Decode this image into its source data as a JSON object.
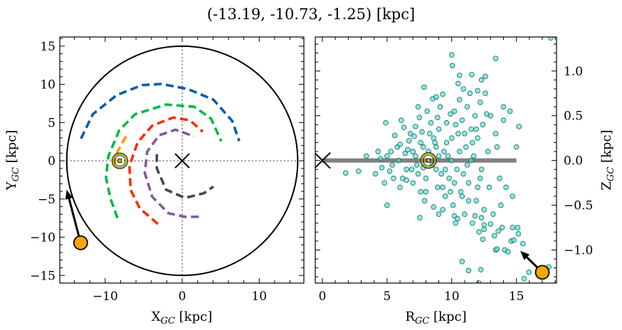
{
  "title": "(-13.19, -10.73, -1.25) [kpc]",
  "colors": {
    "cyan_points": "#40e0d0",
    "target": "#ffa500",
    "sun_ring": "#b5b800",
    "arc_blue": "#0c5da5",
    "arc_green": "#00b945",
    "arc_red": "#ff2c00",
    "arc_purple": "#845b97",
    "arc_gray": "#474747",
    "arc_orange": "#ff9500",
    "plane_line": "#808080"
  },
  "chart_data": [
    {
      "type": "line",
      "panel": "left",
      "xlabel": [
        "X",
        "GC",
        " [kpc]"
      ],
      "ylabel": [
        "Y",
        "GC",
        " [kpc]"
      ],
      "xlim": [
        -15.9,
        15.8
      ],
      "ylim": [
        -16,
        16.2
      ],
      "xticks": [
        -10,
        0,
        10
      ],
      "xtick_labels": [
        "−10",
        "0",
        "10"
      ],
      "yticks": [
        -15,
        -10,
        -5,
        0,
        5,
        10,
        15
      ],
      "ytick_labels": [
        "−15",
        "−10",
        "−5",
        "0",
        "5",
        "10",
        "15"
      ],
      "boundary_circle_radius": 15,
      "galactic_center": [
        0,
        0
      ],
      "sun": [
        -8.1,
        0
      ],
      "target": [
        -13.19,
        -10.73
      ],
      "target_arrow_to": [
        -15.0,
        -3.8
      ],
      "spiral_arms": [
        {
          "color": "arc_blue",
          "points": [
            [
              -13.15,
              2.9
            ],
            [
              -11.6,
              6.1
            ],
            [
              -8.5,
              8.6
            ],
            [
              -5.2,
              9.9
            ],
            [
              -2.7,
              10.05
            ],
            [
              0.7,
              9.4
            ],
            [
              4.05,
              8.0
            ],
            [
              6.5,
              5.2
            ],
            [
              7.4,
              2.57
            ]
          ]
        },
        {
          "color": "arc_green",
          "points": [
            [
              -8.4,
              -7.5
            ],
            [
              -9.3,
              -5.0
            ],
            [
              -9.9,
              -2.2
            ],
            [
              -9.6,
              0.55
            ],
            [
              -8.2,
              3.96
            ],
            [
              -6.1,
              6.1
            ],
            [
              -2.1,
              7.36
            ],
            [
              1.6,
              7.06
            ],
            [
              3.75,
              5.5
            ],
            [
              5.07,
              2.57
            ]
          ]
        },
        {
          "color": "arc_red",
          "points": [
            [
              -3.16,
              -8.26
            ],
            [
              -5.5,
              -6.25
            ],
            [
              -6.7,
              -3.8
            ],
            [
              -6.85,
              -0.68
            ],
            [
              -5.8,
              2.4
            ],
            [
              -3.9,
              4.6
            ],
            [
              -1.17,
              5.66
            ],
            [
              1.0,
              5.3
            ],
            [
              2.67,
              3.8
            ]
          ]
        },
        {
          "color": "arc_purple",
          "points": [
            [
              2.15,
              -7.33
            ],
            [
              0.37,
              -7.33
            ],
            [
              -1.78,
              -6.87
            ],
            [
              -3.9,
              -4.7
            ],
            [
              -4.86,
              -1.6
            ],
            [
              -4.55,
              1.2
            ],
            [
              -3.0,
              3.34
            ],
            [
              -0.86,
              4.06
            ],
            [
              1.54,
              3.2
            ]
          ]
        },
        {
          "color": "arc_gray",
          "points": [
            [
              -3.3,
              0.87
            ],
            [
              -3.3,
              -0.99
            ],
            [
              -2.1,
              -3.78
            ],
            [
              0.37,
              -4.86
            ],
            [
              2.83,
              -4.24
            ],
            [
              4.05,
              -3.37
            ]
          ]
        },
        {
          "color": "arc_orange",
          "points": [
            [
              -7.3,
              3.2
            ],
            [
              -8.4,
              1.2
            ],
            [
              -9.0,
              -1.0
            ]
          ]
        }
      ]
    },
    {
      "type": "scatter",
      "panel": "right",
      "xlabel": [
        "R",
        "GC",
        " [kpc]"
      ],
      "ylabel": [
        "Z",
        "GC",
        " [kpc]"
      ],
      "xlim": [
        -0.55,
        18.1
      ],
      "ylim": [
        -1.37,
        1.38
      ],
      "xticks": [
        0,
        5,
        10,
        15
      ],
      "xtick_labels": [
        "0",
        "5",
        "10",
        "15"
      ],
      "yticks": [
        -1.0,
        -0.5,
        0.0,
        0.5,
        1.0
      ],
      "ytick_labels": [
        "−1.0",
        "−0.5",
        "0.0",
        "0.5",
        "1.0"
      ],
      "plane_line": {
        "r": [
          0,
          15
        ],
        "z": 0
      },
      "galactic_center": [
        0,
        0
      ],
      "sun": [
        8.2,
        0
      ],
      "target": [
        17.0,
        -1.25
      ],
      "target_arrow_to": [
        15.3,
        -1.01
      ],
      "points": [
        [
          17.65,
          1.37
        ],
        [
          10.0,
          1.18
        ],
        [
          10.05,
          1.06
        ],
        [
          13.4,
          1.14
        ],
        [
          11.55,
          0.96
        ],
        [
          12.3,
          0.9
        ],
        [
          7.86,
          0.82
        ],
        [
          8.53,
          0.69
        ],
        [
          10.5,
          0.86
        ],
        [
          10.6,
          0.95
        ],
        [
          12.6,
          0.94
        ],
        [
          12.0,
          0.78
        ],
        [
          9.3,
          0.74
        ],
        [
          8.8,
          0.71
        ],
        [
          7.53,
          -0.64
        ],
        [
          10.2,
          -0.62
        ],
        [
          10.45,
          -0.65
        ],
        [
          13.0,
          -0.71
        ],
        [
          12.5,
          -0.77
        ],
        [
          13.9,
          -0.75
        ],
        [
          14.7,
          -0.75
        ],
        [
          15.1,
          -0.75
        ],
        [
          15.15,
          -0.82
        ],
        [
          15.5,
          -0.93
        ],
        [
          14.6,
          -0.9
        ],
        [
          14.8,
          -0.89
        ],
        [
          12.4,
          -0.88
        ],
        [
          13.3,
          -0.84
        ],
        [
          13.6,
          -0.79
        ],
        [
          13.4,
          -1.0
        ],
        [
          13.5,
          -0.99
        ],
        [
          14.1,
          -1.0
        ],
        [
          14.35,
          -1.02
        ],
        [
          10.8,
          -1.13
        ],
        [
          11.3,
          -1.23
        ],
        [
          12.25,
          -1.22
        ],
        [
          12.1,
          -1.37
        ],
        [
          15.6,
          -1.32
        ],
        [
          15.97,
          -1.25
        ],
        [
          17.5,
          -1.19
        ],
        [
          1.8,
          -0.14
        ],
        [
          2.8,
          -0.12
        ],
        [
          4.1,
          -0.15
        ],
        [
          3.4,
          0.05
        ],
        [
          5.0,
          -0.5
        ],
        [
          4.9,
          0.42
        ],
        [
          6.1,
          0.45
        ],
        [
          7.1,
          0.27
        ],
        [
          7.5,
          0.48
        ],
        [
          6.3,
          0.37
        ],
        [
          5.3,
          0.1
        ],
        [
          4.5,
          0.02
        ],
        [
          4.6,
          -0.08
        ],
        [
          5.5,
          -0.2
        ],
        [
          5.8,
          0.15
        ],
        [
          6.0,
          -0.3
        ],
        [
          6.5,
          -0.1
        ],
        [
          6.7,
          0.22
        ],
        [
          7.0,
          -0.25
        ],
        [
          7.2,
          0.05
        ],
        [
          7.6,
          -0.35
        ],
        [
          7.8,
          0.15
        ],
        [
          8.0,
          -0.2
        ],
        [
          8.3,
          0.3
        ],
        [
          8.5,
          -0.05
        ],
        [
          8.7,
          0.2
        ],
        [
          8.9,
          -0.3
        ],
        [
          9.0,
          0.35
        ],
        [
          9.2,
          -0.15
        ],
        [
          9.4,
          0.1
        ],
        [
          9.5,
          -0.4
        ],
        [
          9.6,
          0.42
        ],
        [
          9.8,
          -0.2
        ],
        [
          10.0,
          0.25
        ],
        [
          10.1,
          -0.5
        ],
        [
          10.2,
          0.55
        ],
        [
          10.4,
          -0.1
        ],
        [
          10.5,
          0.3
        ],
        [
          10.7,
          -0.35
        ],
        [
          10.8,
          0.45
        ],
        [
          11.0,
          -0.6
        ],
        [
          11.1,
          0.15
        ],
        [
          11.2,
          0.6
        ],
        [
          11.3,
          -0.25
        ],
        [
          11.5,
          0.35
        ],
        [
          11.6,
          -0.7
        ],
        [
          11.7,
          0.05
        ],
        [
          11.8,
          0.5
        ],
        [
          11.9,
          -0.45
        ],
        [
          12.0,
          0.25
        ],
        [
          12.1,
          -0.8
        ],
        [
          12.2,
          0.65
        ],
        [
          12.3,
          -0.1
        ],
        [
          12.4,
          0.4
        ],
        [
          12.5,
          -0.55
        ],
        [
          12.6,
          0.75
        ],
        [
          12.8,
          0.1
        ],
        [
          12.9,
          -0.3
        ],
        [
          13.0,
          0.5
        ],
        [
          13.2,
          -0.6
        ],
        [
          13.4,
          0.3
        ],
        [
          13.5,
          0.15
        ],
        [
          13.7,
          -0.2
        ],
        [
          14.0,
          0.45
        ],
        [
          14.2,
          -0.3
        ],
        [
          14.5,
          0.55
        ],
        [
          14.7,
          -0.4
        ],
        [
          15.2,
          0.38
        ],
        [
          15.0,
          0.15
        ],
        [
          13.8,
          -0.5
        ],
        [
          14.0,
          0.6
        ],
        [
          12.7,
          0.52
        ],
        [
          11.4,
          0.75
        ],
        [
          10.9,
          0.8
        ],
        [
          9.9,
          0.52
        ],
        [
          9.1,
          0.6
        ],
        [
          8.1,
          0.55
        ],
        [
          7.4,
          0.6
        ],
        [
          6.9,
          -0.1
        ],
        [
          7.9,
          -0.45
        ],
        [
          8.6,
          -0.52
        ],
        [
          9.3,
          -0.55
        ],
        [
          10.3,
          -0.7
        ],
        [
          10.6,
          0.68
        ],
        [
          11.8,
          -0.62
        ],
        [
          12.3,
          -0.64
        ],
        [
          12.5,
          -0.72
        ],
        [
          6.4,
          0.08
        ],
        [
          5.6,
          0.28
        ],
        [
          5.2,
          -0.12
        ],
        [
          4.8,
          -0.25
        ],
        [
          8.2,
          0.1
        ],
        [
          8.8,
          -0.1
        ],
        [
          9.7,
          0.05
        ],
        [
          7.3,
          -0.05
        ],
        [
          9.0,
          -0.6
        ],
        [
          10.0,
          0.0
        ],
        [
          10.9,
          -0.15
        ],
        [
          11.5,
          0.0
        ],
        [
          12.0,
          -0.3
        ],
        [
          8.4,
          0.42
        ],
        [
          7.7,
          0.32
        ],
        [
          6.8,
          0.3
        ],
        [
          6.2,
          -0.2
        ],
        [
          5.9,
          0.0
        ],
        [
          6.6,
          0.12
        ],
        [
          7.0,
          0.1
        ],
        [
          7.4,
          -0.15
        ],
        [
          7.8,
          -0.08
        ],
        [
          8.6,
          0.25
        ],
        [
          9.0,
          0.05
        ],
        [
          9.3,
          -0.3
        ],
        [
          9.6,
          0.2
        ],
        [
          10.2,
          -0.25
        ],
        [
          10.6,
          0.1
        ],
        [
          11.0,
          0.3
        ],
        [
          11.3,
          -0.45
        ],
        [
          11.9,
          0.35
        ],
        [
          12.2,
          -0.2
        ],
        [
          6.0,
          0.18
        ],
        [
          6.5,
          -0.22
        ],
        [
          7.2,
          0.38
        ],
        [
          8.0,
          -0.35
        ],
        [
          8.9,
          0.48
        ],
        [
          9.5,
          -0.1
        ],
        [
          10.3,
          0.4
        ],
        [
          10.8,
          -0.4
        ],
        [
          11.6,
          0.2
        ],
        [
          5.0,
          0.05
        ],
        [
          5.4,
          -0.05
        ],
        [
          4.3,
          0.1
        ],
        [
          7.6,
          0.2
        ],
        [
          8.8,
          0.15
        ],
        [
          9.9,
          -0.35
        ],
        [
          11.2,
          -0.05
        ]
      ]
    }
  ]
}
